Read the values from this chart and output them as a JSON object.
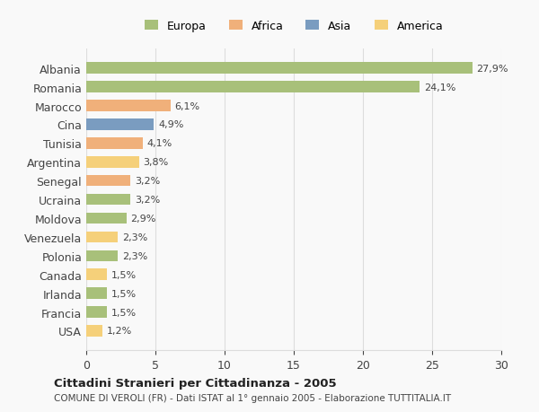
{
  "labels": [
    "Albania",
    "Romania",
    "Marocco",
    "Cina",
    "Tunisia",
    "Argentina",
    "Senegal",
    "Ucraina",
    "Moldova",
    "Venezuela",
    "Polonia",
    "Canada",
    "Irlanda",
    "Francia",
    "USA"
  ],
  "values": [
    27.9,
    24.1,
    6.1,
    4.9,
    4.1,
    3.8,
    3.2,
    3.2,
    2.9,
    2.3,
    2.3,
    1.5,
    1.5,
    1.5,
    1.2
  ],
  "value_labels": [
    "27,9%",
    "24,1%",
    "6,1%",
    "4,9%",
    "4,1%",
    "3,8%",
    "3,2%",
    "3,2%",
    "2,9%",
    "2,3%",
    "2,3%",
    "1,5%",
    "1,5%",
    "1,5%",
    "1,2%"
  ],
  "colors": [
    "#a8c07a",
    "#a8c07a",
    "#f0b07a",
    "#7a9cc0",
    "#f0b07a",
    "#f5d07a",
    "#f0b07a",
    "#a8c07a",
    "#a8c07a",
    "#f5d07a",
    "#a8c07a",
    "#f5d07a",
    "#a8c07a",
    "#a8c07a",
    "#f5d07a"
  ],
  "legend_labels": [
    "Europa",
    "Africa",
    "Asia",
    "America"
  ],
  "legend_colors": [
    "#a8c07a",
    "#f0b07a",
    "#7a9cc0",
    "#f5d07a"
  ],
  "xlim": [
    0,
    30
  ],
  "xticks": [
    0,
    5,
    10,
    15,
    20,
    25,
    30
  ],
  "title": "Cittadini Stranieri per Cittadinanza - 2005",
  "subtitle": "COMUNE DI VEROLI (FR) - Dati ISTAT al 1° gennaio 2005 - Elaborazione TUTTITALIA.IT",
  "background_color": "#f9f9f9",
  "grid_color": "#dddddd"
}
